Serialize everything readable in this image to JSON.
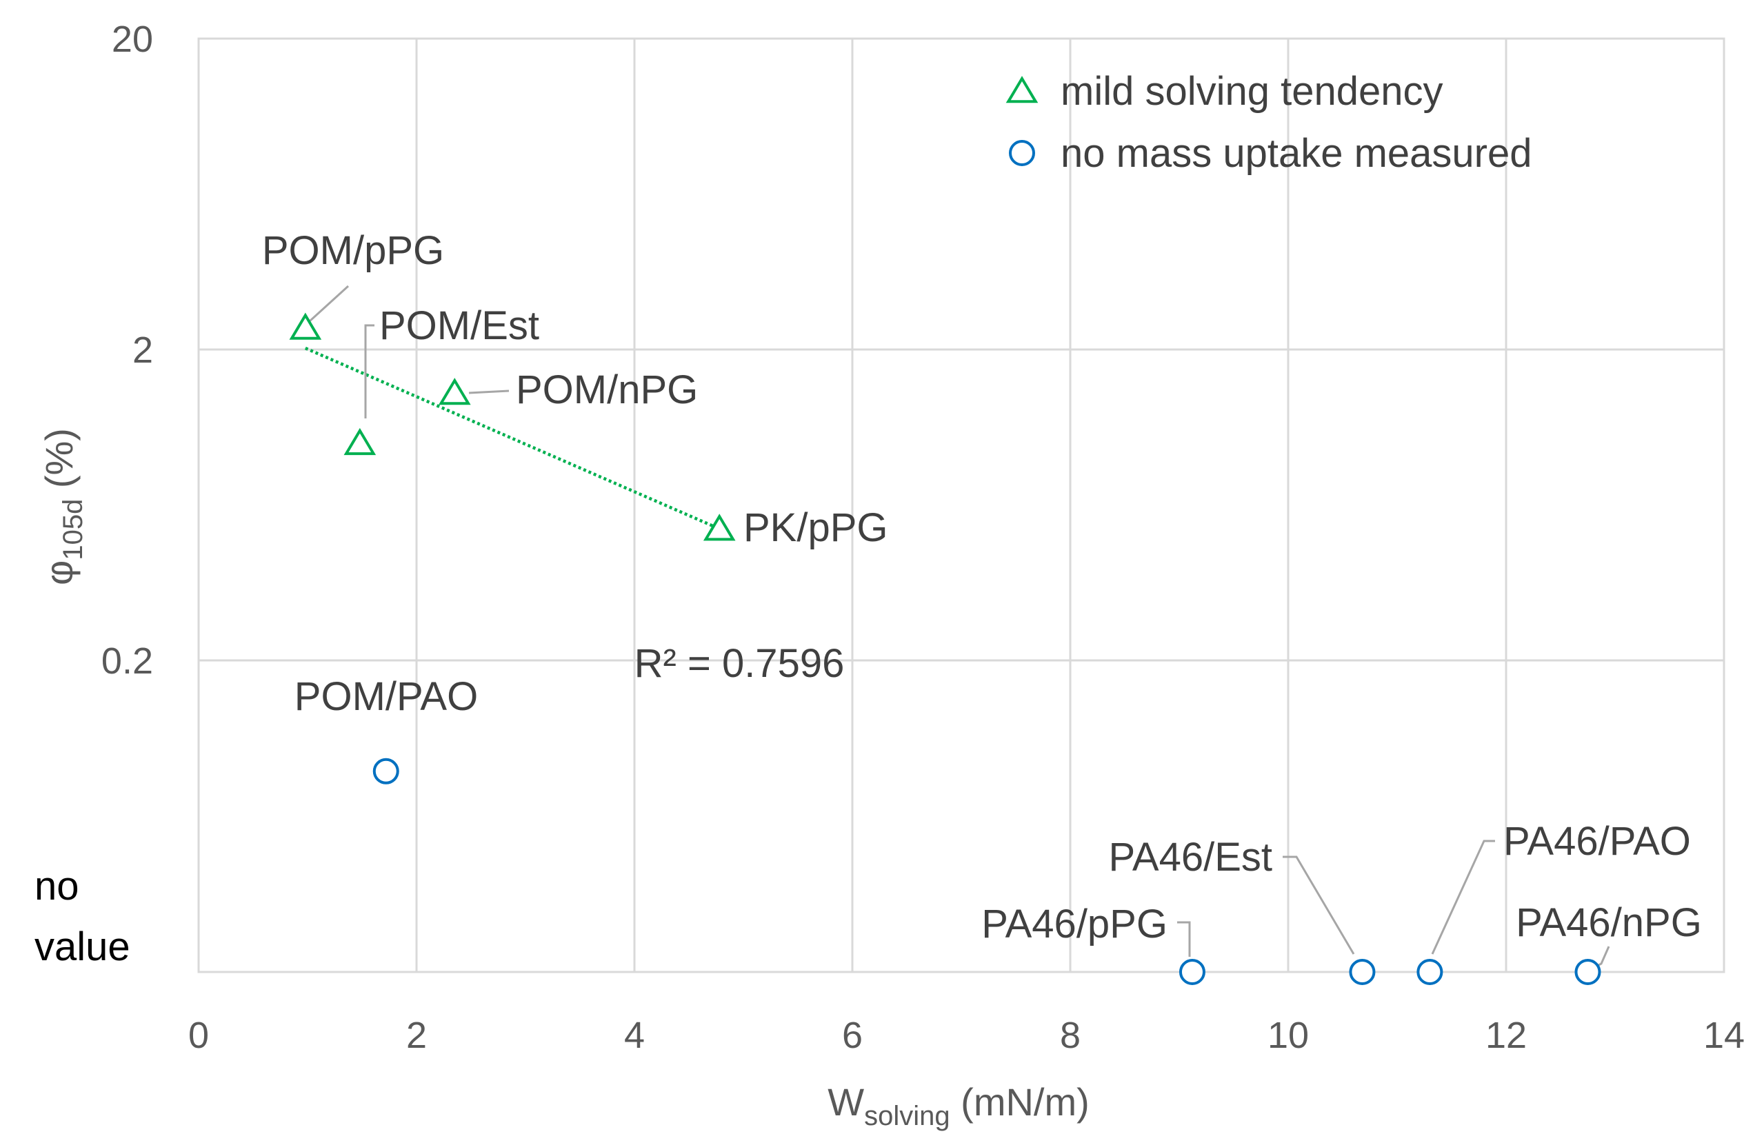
{
  "chart_data": {
    "type": "scatter",
    "xlabel": {
      "main": "W",
      "sub": "solving",
      "rest": " (mN/m)"
    },
    "ylabel": {
      "main": "φ",
      "sub": "105d",
      "rest": " (%)"
    },
    "xlim": [
      0,
      14
    ],
    "x_ticks": [
      0,
      2,
      4,
      6,
      8,
      10,
      12,
      14
    ],
    "x_tick_labels": [
      "0",
      "2",
      "4",
      "6",
      "8",
      "10",
      "12",
      "14"
    ],
    "y_scale": "log",
    "y_ticks": [
      0.2,
      2,
      20
    ],
    "y_tick_labels": [
      "0.2",
      "2",
      "20"
    ],
    "no_value_label": [
      "no",
      "value"
    ],
    "legend_position": "top-right",
    "series": [
      {
        "name": "mild solving tendency",
        "marker": "triangle",
        "color": "#00b050",
        "points": [
          {
            "label": "POM/pPG",
            "x": 0.98,
            "y": 2.35
          },
          {
            "label": "POM/Est",
            "x": 1.48,
            "y": 1.0
          },
          {
            "label": "POM/nPG",
            "x": 2.35,
            "y": 1.45
          },
          {
            "label": "PK/pPG",
            "x": 4.78,
            "y": 0.53
          }
        ]
      },
      {
        "name": "no mass uptake measured",
        "marker": "circle",
        "color": "#0070c0",
        "points": [
          {
            "label": "POM/PAO",
            "x": 1.72,
            "y": 0.088
          },
          {
            "label": "PA46/pPG",
            "x": 9.12,
            "y": null
          },
          {
            "label": "PA46/Est",
            "x": 10.68,
            "y": null
          },
          {
            "label": "PA46/PAO",
            "x": 11.3,
            "y": null
          },
          {
            "label": "PA46/nPG",
            "x": 12.75,
            "y": null
          }
        ]
      }
    ],
    "trendline": {
      "series": "mild solving tendency",
      "x_range": [
        0.98,
        4.78
      ],
      "y_range": [
        2.02,
        0.53
      ],
      "color": "#00b050",
      "r2_label": "R² = 0.7596"
    }
  }
}
